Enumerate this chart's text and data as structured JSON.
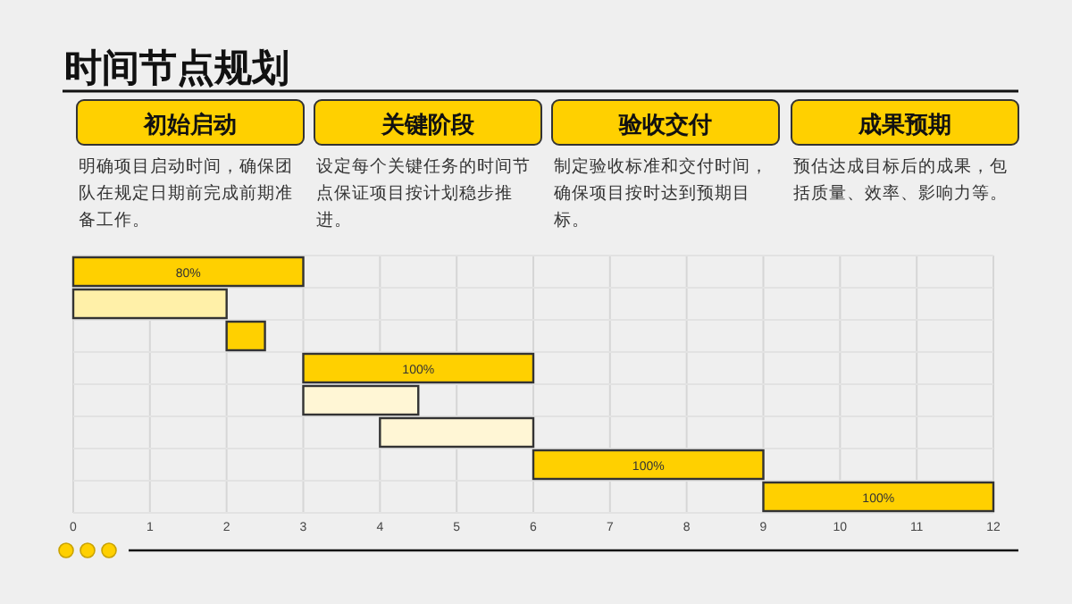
{
  "chart_data": {
    "type": "bar",
    "orientation": "horizontal",
    "title": "时间节点规划",
    "annotations": [
      "初始启动",
      "明确项目启动时间，确保团队在规定日期前完成前期准备工作。",
      "关键阶段",
      "设定每个关键任务的时间节点保证项目按计划稳步推进。",
      "验收交付",
      "制定验收标准和交付时间，确保项目按时达到预期目标。",
      "成果预期",
      "预估达成目标后的成果，包括质量、效率、影响力等。",
      "80%",
      "100%",
      "100%",
      "100%"
    ],
    "categories": [
      null,
      null,
      null,
      null,
      null,
      null,
      null,
      null
    ],
    "base": [
      0,
      0,
      2,
      3,
      3,
      4,
      6,
      9
    ],
    "values": [
      3,
      2,
      0.5,
      3,
      1.5,
      2,
      3,
      3
    ],
    "colors": [
      "#ffd000",
      "#fff0a8",
      "#ffd000",
      "#ffd000",
      "#fff6d5",
      "#fff6d5",
      "#ffd000",
      "#ffd000"
    ],
    "xlim": [
      0,
      12
    ],
    "xticks": [
      0,
      1,
      2,
      3,
      4,
      5,
      6,
      7,
      8,
      9,
      10,
      11,
      12
    ],
    "grid": true
  }
}
